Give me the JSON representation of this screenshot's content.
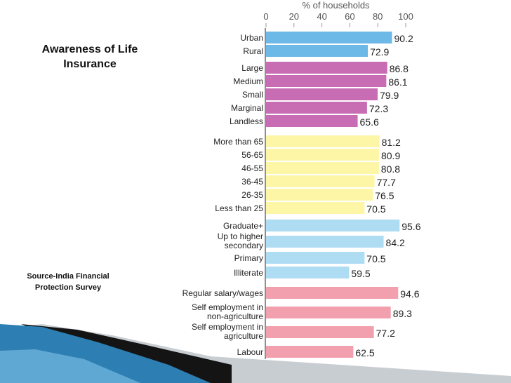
{
  "slide": {
    "title": "Awareness of Life Insurance",
    "source": "Source-India Financial Protection Survey"
  },
  "chart_data": {
    "type": "bar",
    "orientation": "horizontal",
    "xlabel": "% of households",
    "xlim": [
      0,
      100
    ],
    "xticks": [
      "0",
      "20",
      "40",
      "60",
      "80",
      "100"
    ],
    "groups": [
      {
        "color": "#6cb8e6",
        "items": [
          {
            "label": [
              "Urban"
            ],
            "value": 90.2
          },
          {
            "label": [
              "Rural"
            ],
            "value": 72.9
          }
        ]
      },
      {
        "color": "#c86cb4",
        "items": [
          {
            "label": [
              "Large"
            ],
            "value": 86.8
          },
          {
            "label": [
              "Medium"
            ],
            "value": 86.1
          },
          {
            "label": [
              "Small"
            ],
            "value": 79.9
          },
          {
            "label": [
              "Marginal"
            ],
            "value": 72.3
          },
          {
            "label": [
              "Landless"
            ],
            "value": 65.6
          }
        ]
      },
      {
        "color": "#fdf6a6",
        "items": [
          {
            "label": [
              "More than 65"
            ],
            "value": 81.2
          },
          {
            "label": [
              "56-65"
            ],
            "value": 80.9
          },
          {
            "label": [
              "46-55"
            ],
            "value": 80.8
          },
          {
            "label": [
              "36-45"
            ],
            "value": 77.7
          },
          {
            "label": [
              "26-35"
            ],
            "value": 76.5
          },
          {
            "label": [
              "Less than 25"
            ],
            "value": 70.5
          }
        ]
      },
      {
        "color": "#aedcf3",
        "items": [
          {
            "label": [
              "Graduate+"
            ],
            "value": 95.6
          },
          {
            "label": [
              "Up to higher",
              "secondary"
            ],
            "value": 84.2
          },
          {
            "label": [
              "Primary"
            ],
            "value": 70.5
          },
          {
            "label": [
              "Illiterate"
            ],
            "value": 59.5
          }
        ]
      },
      {
        "color": "#f2a0ae",
        "items": [
          {
            "label": [
              "Regular salary/wages"
            ],
            "value": 94.6
          },
          {
            "label": [
              "Self employment in",
              "non-agriculture"
            ],
            "value": 89.3
          },
          {
            "label": [
              "Self employment in",
              "agriculture"
            ],
            "value": 77.2
          },
          {
            "label": [
              "Labour"
            ],
            "value": 62.5
          }
        ]
      }
    ]
  }
}
